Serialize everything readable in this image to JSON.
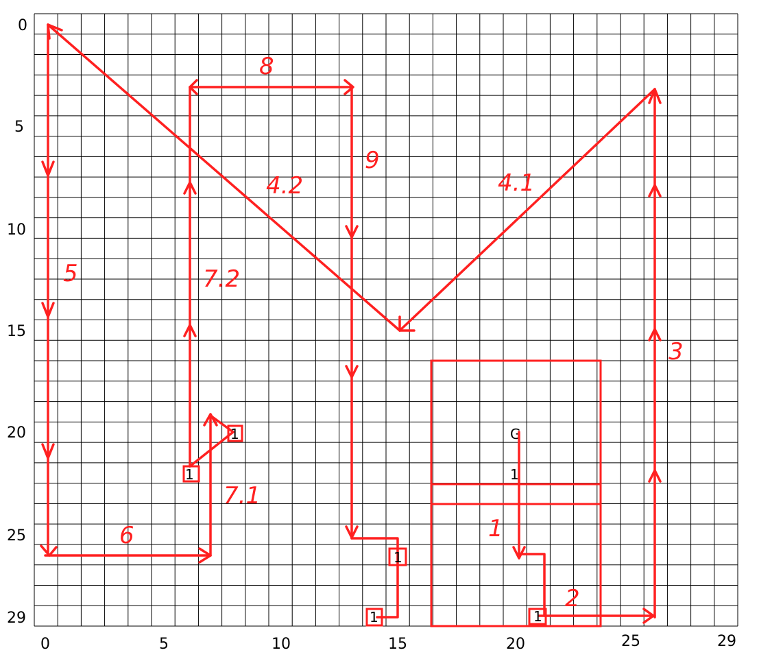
{
  "grid": {
    "cols": 29,
    "rows": 29,
    "x_ticks": [
      "0",
      "5",
      "10",
      "15",
      "20",
      "25",
      "29"
    ],
    "y_ticks": [
      "0",
      "5",
      "10",
      "15",
      "20",
      "25",
      "29"
    ]
  },
  "colors": {
    "path": "#ff2020",
    "grid": "#000000",
    "background": "#ffffff"
  },
  "segment_labels": {
    "s8": "8",
    "s9": "9",
    "s4_2": "4.2",
    "s4_1": "4.1",
    "s5": "5",
    "s7_2": "7.2",
    "s3": "3",
    "s7_1": "7.1",
    "s6": "6",
    "s1": "1",
    "s2": "2"
  },
  "box_labels": {
    "b_a": "1",
    "b_b": "1",
    "b_c": "1",
    "b_d": "1",
    "b_e": "1"
  },
  "room_labels": {
    "start": "G",
    "mid": "1"
  }
}
